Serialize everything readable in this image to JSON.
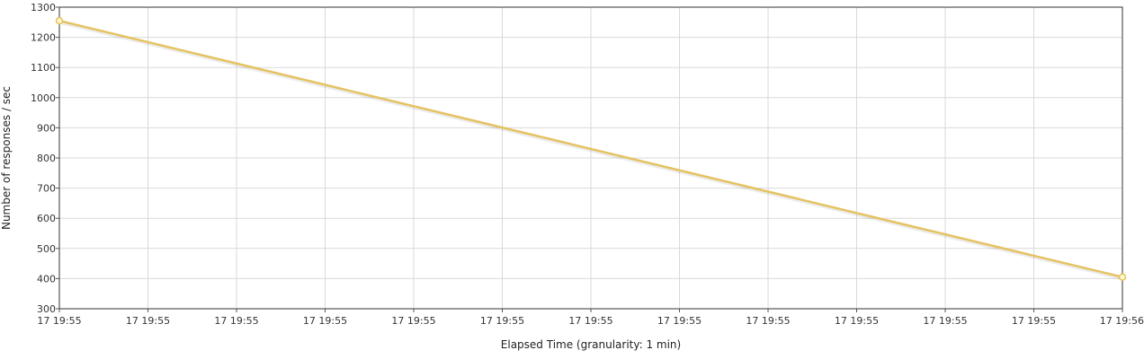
{
  "chart_data": {
    "type": "line",
    "xlabel": "Elapsed Time (granularity: 1 min)",
    "ylabel": "Number of responses / sec",
    "ylim": [
      300,
      1300
    ],
    "yticks": [
      300,
      400,
      500,
      600,
      700,
      800,
      900,
      1000,
      1100,
      1200,
      1300
    ],
    "xtick_labels": [
      "17 19:55",
      "17 19:55",
      "17 19:55",
      "17 19:55",
      "17 19:55",
      "17 19:55",
      "17 19:55",
      "17 19:55",
      "17 19:55",
      "17 19:55",
      "17 19:55",
      "17 19:55",
      "17 19:56"
    ],
    "grid": true,
    "series": [
      {
        "color": "#E5C261",
        "points": [
          {
            "x": "17 19:55",
            "y": 1255
          },
          {
            "x": "17 19:56",
            "y": 405
          }
        ]
      }
    ]
  }
}
